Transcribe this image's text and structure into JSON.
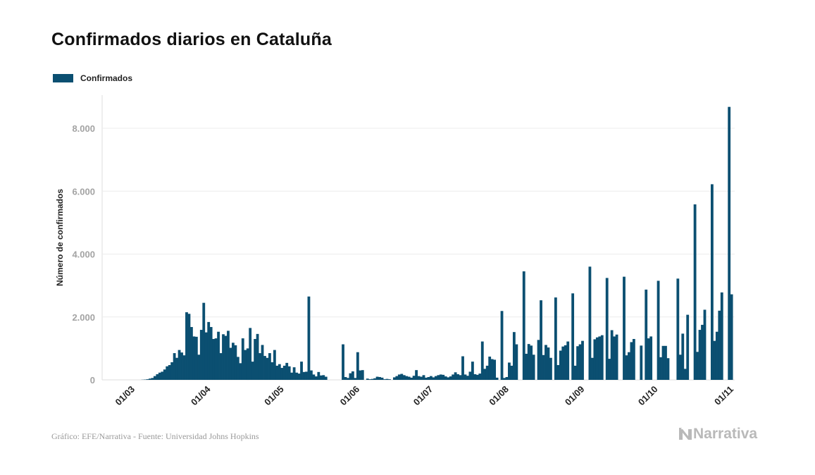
{
  "title": "Confirmados diarios en Cataluña",
  "legend": {
    "label": "Confirmados",
    "color": "#0b4f71"
  },
  "footer": {
    "source": "Gráfico: EFE/Narrativa - Fuente: Universidad Johns Hopkins",
    "brand": "Narrativa"
  },
  "chart_data": {
    "type": "bar",
    "title": "Confirmados diarios en Cataluña",
    "xlabel": "",
    "ylabel": "Número de confirmados",
    "ylim": [
      0,
      9000
    ],
    "grid": true,
    "legend_position": "top-left",
    "y_ticks": [
      {
        "value": 0,
        "label": "0"
      },
      {
        "value": 2000,
        "label": "2.000"
      },
      {
        "value": 4000,
        "label": "4.000"
      },
      {
        "value": 6000,
        "label": "6.000"
      },
      {
        "value": 8000,
        "label": "8.000"
      }
    ],
    "x_ticks": [
      {
        "day": 10,
        "label": "01/03"
      },
      {
        "day": 41,
        "label": "01/04"
      },
      {
        "day": 71,
        "label": "01/05"
      },
      {
        "day": 102,
        "label": "01/06"
      },
      {
        "day": 132,
        "label": "01/07"
      },
      {
        "day": 163,
        "label": "01/08"
      },
      {
        "day": 194,
        "label": "01/09"
      },
      {
        "day": 224,
        "label": "01/10"
      },
      {
        "day": 255,
        "label": "01/11"
      }
    ],
    "x_range_days": [
      0,
      256
    ],
    "start_date": "2020-02-20",
    "series": [
      {
        "name": "Confirmados",
        "color": "#0b4f71",
        "values": [
          0,
          0,
          0,
          0,
          0,
          0,
          0,
          0,
          0,
          0,
          0,
          0,
          0,
          0,
          0,
          5,
          10,
          20,
          40,
          60,
          120,
          180,
          230,
          260,
          330,
          430,
          470,
          560,
          850,
          700,
          950,
          870,
          780,
          2150,
          2100,
          1680,
          1380,
          1370,
          800,
          1590,
          2450,
          1510,
          1840,
          1680,
          1300,
          1320,
          1530,
          850,
          1450,
          1400,
          1560,
          1020,
          1180,
          1100,
          730,
          530,
          1320,
          950,
          1000,
          1650,
          580,
          1300,
          1460,
          850,
          1110,
          760,
          700,
          850,
          560,
          950,
          450,
          500,
          380,
          450,
          540,
          430,
          230,
          400,
          230,
          200,
          580,
          250,
          260,
          2650,
          300,
          170,
          110,
          250,
          140,
          150,
          100,
          0,
          0,
          0,
          0,
          0,
          0,
          1130,
          90,
          60,
          210,
          270,
          60,
          880,
          300,
          310,
          0,
          40,
          20,
          30,
          50,
          100,
          90,
          70,
          20,
          30,
          20,
          0,
          80,
          120,
          170,
          190,
          150,
          120,
          100,
          70,
          130,
          310,
          120,
          100,
          150,
          70,
          90,
          120,
          80,
          120,
          150,
          170,
          160,
          110,
          80,
          110,
          170,
          240,
          180,
          150,
          750,
          170,
          130,
          260,
          580,
          180,
          160,
          200,
          1220,
          350,
          450,
          740,
          660,
          640,
          70,
          0,
          2190,
          60,
          90,
          550,
          450,
          1520,
          1130,
          0,
          0,
          3450,
          830,
          1140,
          1090,
          800,
          0,
          1270,
          2530,
          790,
          1110,
          1030,
          700,
          0,
          2620,
          470,
          930,
          1060,
          1100,
          1220,
          0,
          2750,
          450,
          1070,
          1130,
          1240,
          0,
          0,
          3600,
          700,
          1290,
          1350,
          1380,
          1420,
          0,
          3240,
          670,
          1580,
          1380,
          1440,
          0,
          0,
          3280,
          780,
          880,
          1200,
          1300,
          0,
          0,
          1090,
          0,
          2870,
          1320,
          1380,
          0,
          0,
          3150,
          720,
          1080,
          1080,
          690,
          0,
          0,
          0,
          3220,
          800,
          1470,
          350,
          2070,
          0,
          0,
          5580,
          890,
          1590,
          1750,
          2230,
          0,
          0,
          6220,
          1240,
          1530,
          2200,
          2780,
          0,
          0,
          8680,
          2720
        ]
      }
    ]
  }
}
